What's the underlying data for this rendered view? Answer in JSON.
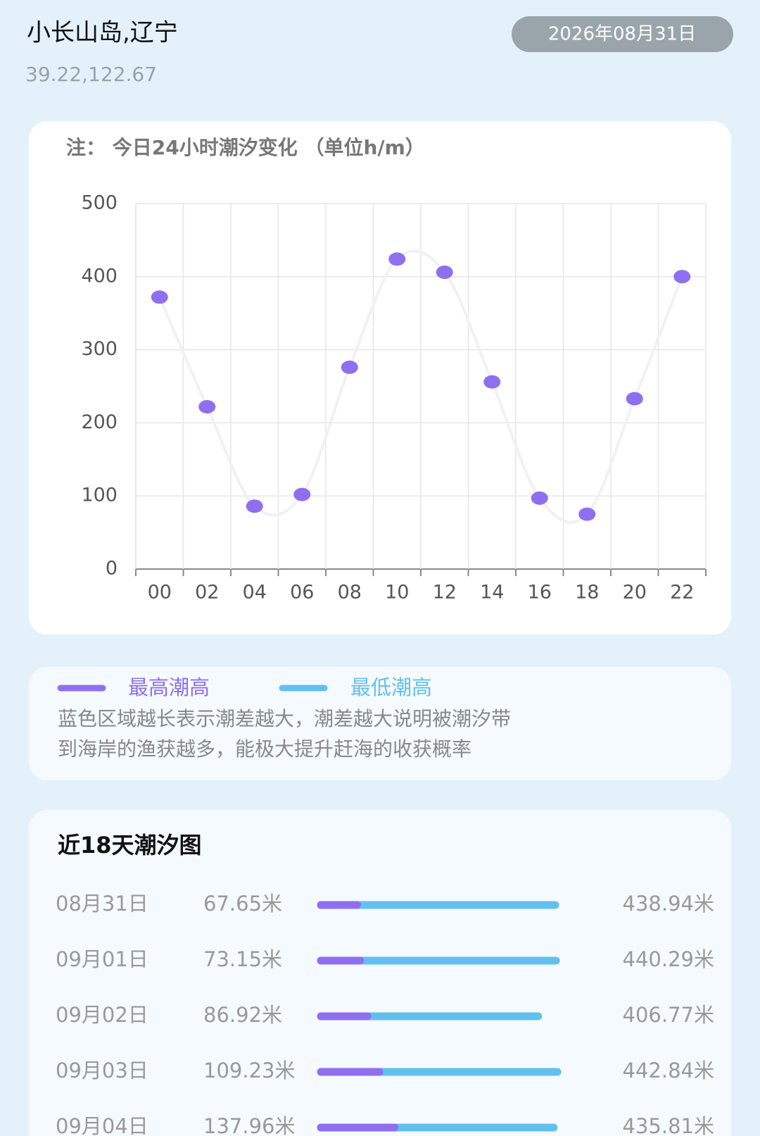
{
  "header": {
    "location": "小长山岛,辽宁",
    "coordinates": "39.22,122.67",
    "date": "2026年08月31日"
  },
  "chart_data": {
    "type": "line",
    "title": "注： 今日24小时潮汐变化 （单位h/m）",
    "categories": [
      "00",
      "02",
      "04",
      "06",
      "08",
      "10",
      "12",
      "14",
      "16",
      "18",
      "20",
      "22"
    ],
    "values": [
      372,
      222,
      86,
      102,
      276,
      424,
      406,
      256,
      97,
      75,
      233,
      400
    ],
    "color": "#8f6ff0",
    "line_color": "#f1f1f4",
    "ylim": [
      0,
      500
    ],
    "yticks": [
      0,
      100,
      200,
      300,
      400,
      500
    ],
    "grid": true
  },
  "legend": {
    "high": "最高潮高",
    "low": "最低潮高",
    "note_lines": [
      "蓝色区域越长表示潮差越大，潮差越大说明被潮汐带",
      "到海岸的渔获越多，能极大提升赶海的收获概率"
    ]
  },
  "tide_list": {
    "title": "近18天潮汐图",
    "low_color": "#8f6ff0",
    "high_color": "#62c0ef",
    "rows": [
      {
        "date": "08月31日",
        "low": {
          "value": 67.65,
          "label": "67.65米"
        },
        "high": {
          "value": 438.94,
          "label": "438.94米"
        }
      },
      {
        "date": "09月01日",
        "low": {
          "value": 73.15,
          "label": "73.15米"
        },
        "high": {
          "value": 440.29,
          "label": "440.29米"
        }
      },
      {
        "date": "09月02日",
        "low": {
          "value": 86.92,
          "label": "86.92米"
        },
        "high": {
          "value": 406.77,
          "label": "406.77米"
        }
      },
      {
        "date": "09月03日",
        "low": {
          "value": 109.23,
          "label": "109.23米"
        },
        "high": {
          "value": 442.84,
          "label": "442.84米"
        }
      },
      {
        "date": "09月04日",
        "low": {
          "value": 137.96,
          "label": "137.96米"
        },
        "high": {
          "value": 435.81,
          "label": "435.81米"
        }
      }
    ]
  }
}
